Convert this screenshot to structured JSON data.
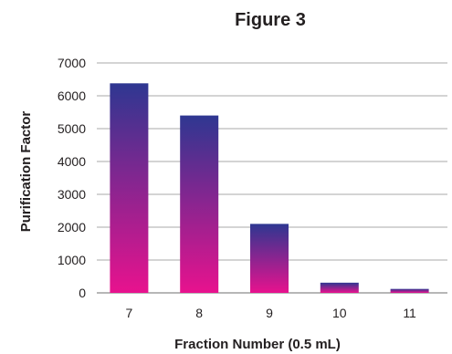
{
  "chart_data": {
    "type": "bar",
    "title": "Figure 3",
    "xlabel": "Fraction Number (0.5 mL)",
    "ylabel": "Purification Factor",
    "categories": [
      "7",
      "8",
      "9",
      "10",
      "11"
    ],
    "values": [
      6380,
      5400,
      2100,
      310,
      120
    ],
    "ylim": [
      0,
      7000
    ],
    "yticks": [
      "0",
      "1000",
      "2000",
      "3000",
      "4000",
      "5000",
      "6000",
      "7000"
    ],
    "grid": true,
    "legend": "none",
    "colors": {
      "bar_top": "#2e3791",
      "bar_bottom": "#e8128e",
      "grid": "#8c8c8c"
    }
  }
}
